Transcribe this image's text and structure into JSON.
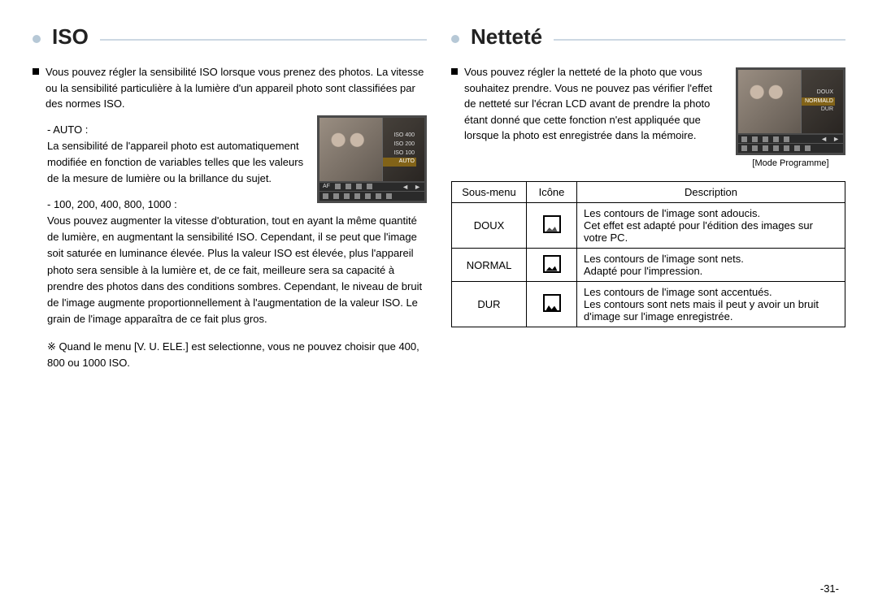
{
  "page_number": "-31-",
  "left": {
    "title": "ISO",
    "intro": "Vous pouvez régler la sensibilité ISO lorsque vous prenez des photos. La vitesse ou la sensibilité particulière à la lumière d'un appareil photo sont classifiées par des normes ISO.",
    "auto_label": "- AUTO :",
    "auto_text": "La sensibilité de l'appareil photo est automatiquement modifiée en fonction de variables telles que les valeurs de la mesure de lumière ou la brillance du sujet.",
    "range_label": "- 100, 200, 400, 800, 1000 :",
    "range_text": "Vous pouvez augmenter la vitesse d'obturation, tout en ayant la même quantité de lumière, en augmentant la sensibilité ISO. Cependant, il se peut que l'image soit saturée en luminance élevée. Plus la valeur ISO est élevée, plus l'appareil photo sera sensible à la lumière et, de ce fait, meilleure sera sa capacité à prendre des photos dans des conditions sombres. Cependant, le niveau de bruit de l'image augmente proportionnellement à l'augmentation de la valeur ISO. Le grain de l'image apparaîtra de ce fait plus gros.",
    "note": "※ Quand le menu [V. U. ELE.] est selectionne, vous ne pouvez choisir que 400, 800 ou 1000 ISO.",
    "lcd_menu": {
      "i0": "ISO 400",
      "i1": "ISO 200",
      "i2": "ISO 100",
      "i3": "AUTO",
      "selected_index": 3
    },
    "lcd_bottom_label": "AF"
  },
  "right": {
    "title": "Netteté",
    "intro": "Vous pouvez régler la netteté de la photo que vous souhaitez prendre. Vous ne pouvez pas vérifier l'effet de netteté sur l'écran LCD avant de prendre la photo étant donné que cette fonction n'est appliquée que lorsque la photo est enregistrée dans la mémoire.",
    "lcd_menu": {
      "i0": "DOUX",
      "i1": "NORMALD",
      "i2": "DUR",
      "selected_index": 1
    },
    "lcd_caption": "[Mode Programme]",
    "table": {
      "h0": "Sous-menu",
      "h1": "Icône",
      "h2": "Description",
      "r0_name": "DOUX",
      "r0_desc": "Les contours de l'image sont adoucis.\nCet effet est adapté pour l'édition des images sur votre PC.",
      "r1_name": "NORMAL",
      "r1_desc": "Les contours de l'image sont nets.\nAdapté pour l'impression.",
      "r2_name": "DUR",
      "r2_desc": "Les contours de l'image sont accentués.\nLes contours sont nets mais il peut y avoir un bruit d'image sur l'image enregistrée."
    }
  },
  "colors": {
    "title_bullet": "#b6c8d6",
    "title_rule": "#ccd8e3",
    "text": "#000000",
    "lcd_frame": "#4a4a4a",
    "lcd_sel_bg": "#826318"
  }
}
